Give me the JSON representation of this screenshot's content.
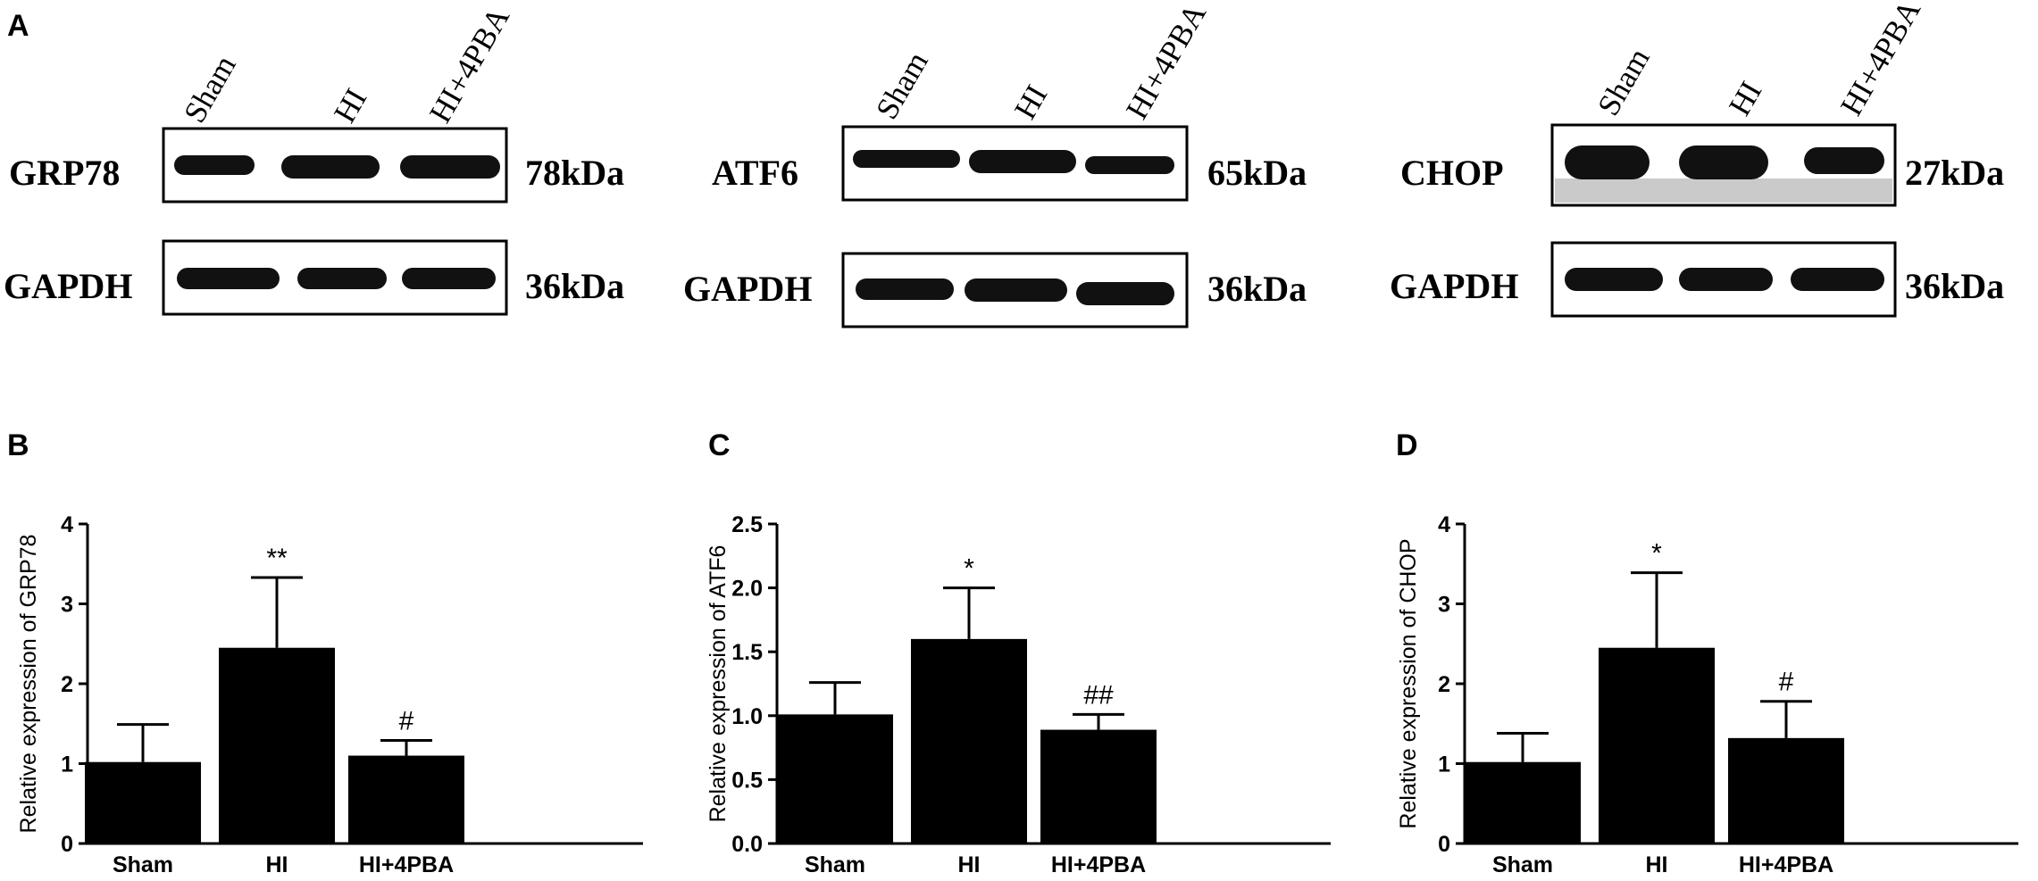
{
  "panel_labels": [
    "A",
    "B",
    "C",
    "D"
  ],
  "western_blots": [
    {
      "lanes": [
        "Sham",
        "HI",
        "HI+4PBA"
      ],
      "target": {
        "protein": "GRP78",
        "kda": "78kDa",
        "intensity": [
          0.85,
          1.0,
          1.0
        ]
      },
      "control": {
        "protein": "GAPDH",
        "kda": "36kDa",
        "intensity": [
          1.0,
          1.0,
          1.0
        ]
      }
    },
    {
      "lanes": [
        "Sham",
        "HI",
        "HI+4PBA"
      ],
      "target": {
        "protein": "ATF6",
        "kda": "65kDa",
        "intensity": [
          0.75,
          1.0,
          0.7
        ]
      },
      "control": {
        "protein": "GAPDH",
        "kda": "36kDa",
        "intensity": [
          1.0,
          1.0,
          1.0
        ]
      }
    },
    {
      "lanes": [
        "Sham",
        "HI",
        "HI+4PBA"
      ],
      "target": {
        "protein": "CHOP",
        "kda": "27kDa",
        "intensity": [
          0.85,
          1.0,
          0.85
        ]
      },
      "control": {
        "protein": "GAPDH",
        "kda": "36kDa",
        "intensity": [
          1.0,
          1.0,
          1.0
        ]
      }
    }
  ],
  "colors": {
    "bars": "#000000",
    "axes": "#000000",
    "background": "#ffffff"
  },
  "chart_data": [
    {
      "type": "bar",
      "categories": [
        "Sham",
        "HI",
        "HI+4PBA"
      ],
      "values": [
        1.02,
        2.45,
        1.1
      ],
      "errors": [
        0.47,
        0.88,
        0.19
      ],
      "annotations": [
        "",
        "**",
        "#"
      ],
      "ylabel": "Relative expression of GRP78",
      "ylim": [
        0,
        4
      ],
      "yticks": [
        "0",
        "1",
        "2",
        "3",
        "4"
      ],
      "ytick_values": [
        0,
        1,
        2,
        3,
        4
      ],
      "grid": false
    },
    {
      "type": "bar",
      "categories": [
        "Sham",
        "HI",
        "HI+4PBA"
      ],
      "values": [
        1.01,
        1.6,
        0.89
      ],
      "errors": [
        0.25,
        0.4,
        0.12
      ],
      "annotations": [
        "",
        "*",
        "##"
      ],
      "ylabel": "Relative expression of ATF6",
      "ylim": [
        0,
        2.5
      ],
      "yticks": [
        "0.0",
        "0.5",
        "1.0",
        "1.5",
        "2.0",
        "2.5"
      ],
      "ytick_values": [
        0,
        0.5,
        1.0,
        1.5,
        2.0,
        2.5
      ],
      "grid": false
    },
    {
      "type": "bar",
      "categories": [
        "Sham",
        "HI",
        "HI+4PBA"
      ],
      "values": [
        1.02,
        2.45,
        1.32
      ],
      "errors": [
        0.36,
        0.94,
        0.46
      ],
      "annotations": [
        "",
        "*",
        "#"
      ],
      "ylabel": "Relative expression of CHOP",
      "ylim": [
        0,
        4
      ],
      "yticks": [
        "0",
        "1",
        "2",
        "3",
        "4"
      ],
      "ytick_values": [
        0,
        1,
        2,
        3,
        4
      ],
      "grid": false
    }
  ]
}
